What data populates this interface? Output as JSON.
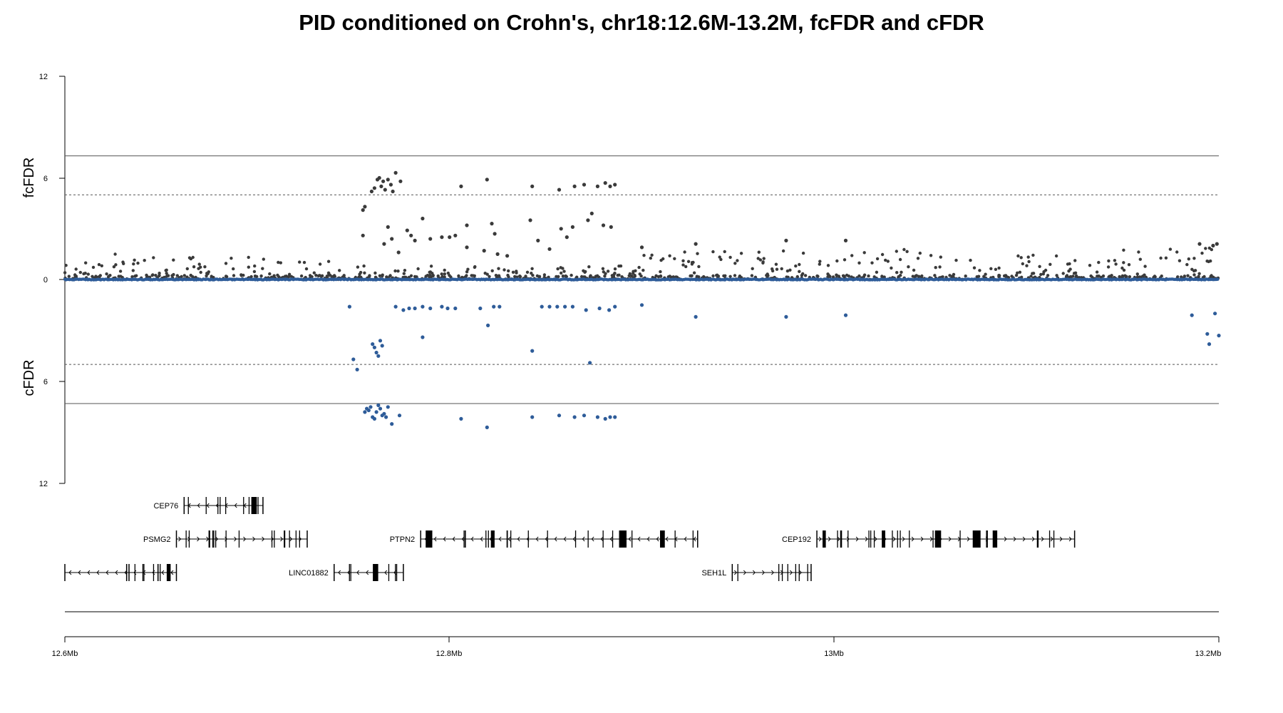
{
  "chart_data": {
    "type": "scatter",
    "title": "PID conditioned on Crohn's, chr18:12.6M-13.2M, fcFDR and cFDR",
    "xlabel": "",
    "x_tick_labels": [
      "12.6Mb",
      "12.8Mb",
      "13Mb",
      "13.2Mb"
    ],
    "x_ticks": [
      12.6,
      12.8,
      13.0,
      13.2
    ],
    "xlim": [
      12.6,
      13.2
    ],
    "upper_panel": {
      "ylabel": "fcFDR",
      "ylim": [
        0,
        12
      ],
      "y_tick_labels": [
        "12",
        "6",
        "0"
      ],
      "y_ticks": [
        12,
        6,
        0
      ],
      "solid_threshold": 7.3,
      "dashed_threshold": 5.0,
      "color": "#3a3a3a",
      "series": {
        "name": "fcFDR (-log10)",
        "highlight_points": [
          [
            12.755,
            4.1
          ],
          [
            12.756,
            4.3
          ],
          [
            12.7595,
            5.2
          ],
          [
            12.761,
            5.4
          ],
          [
            12.7625,
            5.9
          ],
          [
            12.7635,
            6.0
          ],
          [
            12.7645,
            5.5
          ],
          [
            12.7655,
            5.8
          ],
          [
            12.7665,
            5.3
          ],
          [
            12.768,
            5.9
          ],
          [
            12.7695,
            5.6
          ],
          [
            12.7705,
            5.2
          ],
          [
            12.772,
            6.3
          ],
          [
            12.7745,
            5.8
          ],
          [
            12.806,
            5.5
          ],
          [
            12.8195,
            5.9
          ],
          [
            12.843,
            5.5
          ],
          [
            12.857,
            5.3
          ],
          [
            12.865,
            5.5
          ],
          [
            12.87,
            5.6
          ],
          [
            12.877,
            5.5
          ],
          [
            12.881,
            5.7
          ],
          [
            12.8835,
            5.5
          ],
          [
            12.886,
            5.6
          ],
          [
            12.755,
            2.6
          ],
          [
            12.766,
            2.1
          ],
          [
            12.768,
            3.1
          ],
          [
            12.77,
            2.4
          ],
          [
            12.7735,
            1.6
          ],
          [
            12.778,
            2.9
          ],
          [
            12.78,
            2.6
          ],
          [
            12.782,
            2.3
          ],
          [
            12.786,
            3.6
          ],
          [
            12.79,
            2.4
          ],
          [
            12.796,
            2.5
          ],
          [
            12.8,
            2.5
          ],
          [
            12.803,
            2.6
          ],
          [
            12.809,
            3.2
          ],
          [
            12.809,
            1.9
          ],
          [
            12.818,
            1.7
          ],
          [
            12.822,
            3.3
          ],
          [
            12.8235,
            2.7
          ],
          [
            12.825,
            1.5
          ],
          [
            12.83,
            1.4
          ],
          [
            12.842,
            3.5
          ],
          [
            12.846,
            2.3
          ],
          [
            12.852,
            1.8
          ],
          [
            12.858,
            3.0
          ],
          [
            12.861,
            2.5
          ],
          [
            12.864,
            3.1
          ],
          [
            12.872,
            3.5
          ],
          [
            12.874,
            3.9
          ],
          [
            12.88,
            3.2
          ],
          [
            12.884,
            3.1
          ],
          [
            12.9,
            1.9
          ],
          [
            12.928,
            2.1
          ],
          [
            12.975,
            2.3
          ],
          [
            13.006,
            2.3
          ],
          [
            13.19,
            2.1
          ],
          [
            13.197,
            2.0
          ],
          [
            13.199,
            2.1
          ]
        ],
        "baseline_band": [
          {
            "x_range": [
              12.6,
              12.625
            ],
            "max": 1.1
          },
          {
            "x_range": [
              12.625,
              12.65
            ],
            "max": 1.5
          },
          {
            "x_range": [
              12.65,
              12.7
            ],
            "max": 1.4
          },
          {
            "x_range": [
              12.7,
              12.745
            ],
            "max": 1.2
          },
          {
            "x_range": [
              12.745,
              12.9
            ],
            "max": 0.8
          },
          {
            "x_range": [
              12.9,
              13.05
            ],
            "max": 1.8
          },
          {
            "x_range": [
              13.05,
              13.15
            ],
            "max": 1.5
          },
          {
            "x_range": [
              13.15,
              13.2
            ],
            "max": 2.0
          }
        ]
      }
    },
    "lower_panel": {
      "ylabel": "cFDR",
      "ylim": [
        0,
        12
      ],
      "y_tick_labels": [
        "6",
        "12"
      ],
      "y_ticks": [
        6,
        12
      ],
      "solid_threshold": 7.3,
      "dashed_threshold": 5.0,
      "color": "#2e5c99",
      "series": {
        "name": "cFDR (-log10)",
        "points": [
          [
            12.748,
            1.6
          ],
          [
            12.75,
            4.7
          ],
          [
            12.752,
            5.3
          ],
          [
            12.76,
            3.8
          ],
          [
            12.761,
            4.0
          ],
          [
            12.762,
            4.3
          ],
          [
            12.763,
            4.5
          ],
          [
            12.764,
            3.6
          ],
          [
            12.765,
            3.9
          ],
          [
            12.756,
            7.8
          ],
          [
            12.757,
            7.6
          ],
          [
            12.758,
            7.7
          ],
          [
            12.759,
            7.5
          ],
          [
            12.76,
            8.1
          ],
          [
            12.761,
            8.2
          ],
          [
            12.762,
            7.8
          ],
          [
            12.763,
            7.4
          ],
          [
            12.764,
            7.6
          ],
          [
            12.765,
            8.0
          ],
          [
            12.766,
            7.9
          ],
          [
            12.767,
            8.1
          ],
          [
            12.768,
            7.5
          ],
          [
            12.77,
            8.5
          ],
          [
            12.774,
            8.0
          ],
          [
            12.772,
            1.6
          ],
          [
            12.776,
            1.8
          ],
          [
            12.779,
            1.7
          ],
          [
            12.782,
            1.7
          ],
          [
            12.786,
            1.6
          ],
          [
            12.79,
            1.7
          ],
          [
            12.796,
            1.6
          ],
          [
            12.799,
            1.7
          ],
          [
            12.803,
            1.7
          ],
          [
            12.786,
            3.4
          ],
          [
            12.806,
            8.2
          ],
          [
            12.816,
            1.7
          ],
          [
            12.823,
            1.6
          ],
          [
            12.826,
            1.6
          ],
          [
            12.82,
            2.7
          ],
          [
            12.8195,
            8.7
          ],
          [
            12.843,
            4.2
          ],
          [
            12.843,
            8.1
          ],
          [
            12.848,
            1.6
          ],
          [
            12.852,
            1.6
          ],
          [
            12.856,
            1.6
          ],
          [
            12.86,
            1.6
          ],
          [
            12.864,
            1.6
          ],
          [
            12.857,
            8.0
          ],
          [
            12.865,
            8.1
          ],
          [
            12.87,
            8.0
          ],
          [
            12.873,
            4.9
          ],
          [
            12.877,
            8.1
          ],
          [
            12.881,
            8.2
          ],
          [
            12.8835,
            8.1
          ],
          [
            12.886,
            8.1
          ],
          [
            12.871,
            1.8
          ],
          [
            12.878,
            1.7
          ],
          [
            12.883,
            1.8
          ],
          [
            12.886,
            1.6
          ],
          [
            12.9,
            1.5
          ],
          [
            12.928,
            2.2
          ],
          [
            12.975,
            2.2
          ],
          [
            13.006,
            2.1
          ],
          [
            13.186,
            2.1
          ],
          [
            13.194,
            3.2
          ],
          [
            13.195,
            3.8
          ],
          [
            13.2,
            3.3
          ],
          [
            13.198,
            2.0
          ]
        ],
        "baseline": 0
      }
    },
    "genes": [
      {
        "name": "CEP76",
        "start": 12.662,
        "end": 12.703,
        "strand": "-",
        "row": 1
      },
      {
        "name": "PSMG2",
        "start": 12.658,
        "end": 12.726,
        "strand": "+",
        "row": 2
      },
      {
        "name": "PTPN2",
        "start": 12.785,
        "end": 12.929,
        "strand": "-",
        "row": 2
      },
      {
        "name": "CEP192",
        "start": 12.991,
        "end": 13.125,
        "strand": "+",
        "row": 2
      },
      {
        "name": "",
        "start": 12.6,
        "end": 12.658,
        "strand": "-",
        "row": 3
      },
      {
        "name": "LINC01882",
        "start": 12.74,
        "end": 12.776,
        "strand": "-",
        "row": 3
      },
      {
        "name": "SEH1L",
        "start": 12.947,
        "end": 12.988,
        "strand": "+",
        "row": 3
      }
    ]
  }
}
